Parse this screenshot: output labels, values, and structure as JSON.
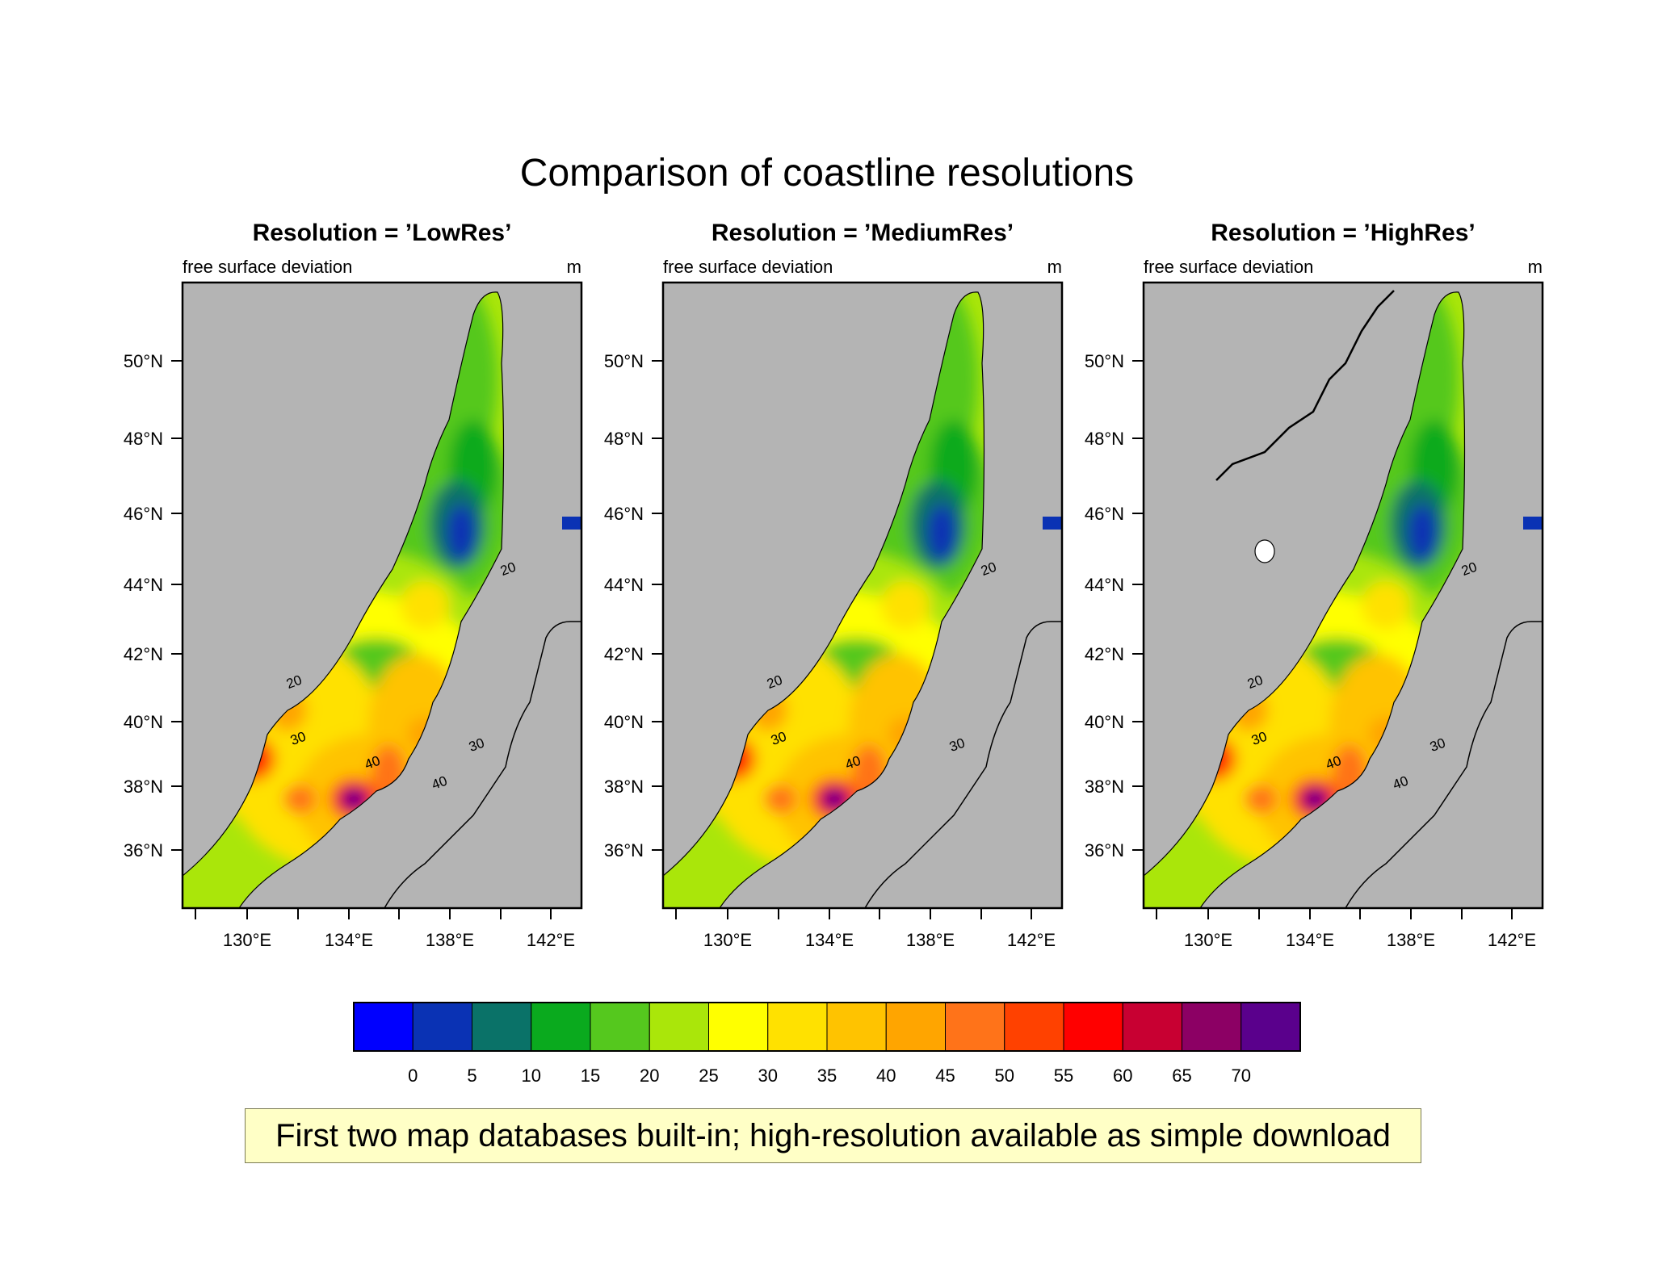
{
  "title": "Comparison of coastline resolutions",
  "panels": [
    {
      "label": "Resolution = ’LowRes’",
      "left_label": "free surface deviation",
      "right_label": "m",
      "contour_labels": [
        "20",
        "20",
        "30",
        "30",
        "40",
        "40"
      ]
    },
    {
      "label": "Resolution = ’MediumRes’",
      "left_label": "free surface deviation",
      "right_label": "m",
      "contour_labels": [
        "20",
        "20",
        "30",
        "30",
        "40"
      ]
    },
    {
      "label": "Resolution = ’HighRes’",
      "left_label": "free surface deviation",
      "right_label": "m",
      "contour_labels": [
        "20",
        "20",
        "30",
        "30",
        "40",
        "40"
      ]
    }
  ],
  "lat_ticks": [
    "50°N",
    "48°N",
    "46°N",
    "44°N",
    "42°N",
    "40°N",
    "38°N",
    "36°N"
  ],
  "lon_ticks": [
    "130°E",
    "134°E",
    "138°E",
    "142°E"
  ],
  "colorbar": {
    "colors": [
      "#0000ff",
      "#0a32b4",
      "#0a7268",
      "#0aaa1e",
      "#55c81e",
      "#aae60a",
      "#ffff00",
      "#ffe100",
      "#ffc300",
      "#ffa500",
      "#ff7319",
      "#ff4100",
      "#ff0000",
      "#c80032",
      "#8c0064",
      "#5a008c"
    ],
    "labels": [
      "0",
      "5",
      "10",
      "15",
      "20",
      "25",
      "30",
      "35",
      "40",
      "45",
      "50",
      "55",
      "60",
      "65",
      "70"
    ]
  },
  "land_color": "#b4b4b4",
  "caption": "First two map databases built-in; high-resolution available as simple download"
}
